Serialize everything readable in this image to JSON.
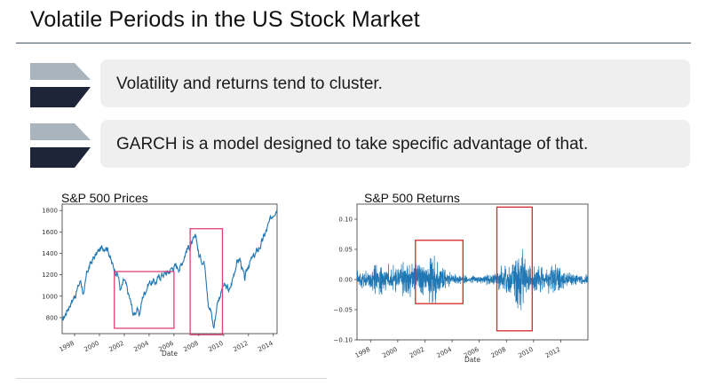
{
  "slide": {
    "title": "Volatile Periods in the US Stock Market",
    "bullets": [
      {
        "text": "Volatility and returns tend to cluster."
      },
      {
        "text": "GARCH is a model designed to take specific advantage of that."
      }
    ],
    "colors": {
      "chevron_light": "#a9b4bd",
      "chevron_dark": "#1f2538",
      "bullet_bg": "#efefef",
      "series": "#1f77b4",
      "highlight_prices": "#e0407a",
      "highlight_returns": "#d62728"
    }
  },
  "chart_data": [
    {
      "type": "line",
      "title": "S&P 500 Prices",
      "xlabel": "Date",
      "ylabel": "",
      "xlim": [
        1997.0,
        2014.3
      ],
      "ylim": [
        650,
        1860
      ],
      "xticks": [
        "1998",
        "2000",
        "2002",
        "2004",
        "2006",
        "2008",
        "2010",
        "2012",
        "2014"
      ],
      "yticks": [
        "800",
        "1000",
        "1200",
        "1400",
        "1600",
        "1800"
      ],
      "series": [
        {
          "x": [
            1997.0,
            1997.5,
            1998.0,
            1998.5,
            1998.75,
            1999.0,
            1999.5,
            2000.0,
            2000.5,
            2000.7,
            2001.0,
            2001.5,
            2001.7,
            2002.0,
            2002.5,
            2002.75,
            2003.0,
            2003.2,
            2003.5,
            2004.0,
            2004.5,
            2005.0,
            2005.5,
            2006.0,
            2006.5,
            2007.0,
            2007.5,
            2007.8,
            2008.0,
            2008.5,
            2008.8,
            2009.0,
            2009.2,
            2009.5,
            2010.0,
            2010.5,
            2011.0,
            2011.3,
            2011.7,
            2012.0,
            2012.5,
            2013.0,
            2013.5,
            2014.0,
            2014.3
          ],
          "y": [
            760,
            900,
            1000,
            1150,
            1000,
            1230,
            1350,
            1430,
            1470,
            1440,
            1300,
            1200,
            1050,
            1150,
            950,
            820,
            880,
            820,
            1000,
            1130,
            1130,
            1200,
            1220,
            1280,
            1270,
            1430,
            1500,
            1550,
            1380,
            1300,
            900,
            850,
            700,
            950,
            1100,
            1050,
            1300,
            1350,
            1150,
            1300,
            1380,
            1480,
            1630,
            1780,
            1830
          ]
        }
      ],
      "highlights": [
        {
          "x": [
            2001.2,
            2006.0
          ],
          "y": [
            700,
            1230
          ]
        },
        {
          "x": [
            2007.3,
            2009.9
          ],
          "y": [
            640,
            1630
          ]
        }
      ]
    },
    {
      "type": "line",
      "title": "S&P 500 Returns",
      "xlabel": "Date",
      "ylabel": "",
      "xlim": [
        1997.0,
        2014.0
      ],
      "ylim": [
        -0.1,
        0.125
      ],
      "xticks": [
        "1998",
        "2000",
        "2002",
        "2004",
        "2006",
        "2008",
        "2010",
        "2012"
      ],
      "yticks": [
        "−0.10",
        "−0.05",
        "0.00",
        "0.05",
        "0.10"
      ],
      "series": [
        {
          "x": [
            1997,
            1998,
            1998.6,
            1999,
            2000,
            2000.5,
            2001,
            2001.7,
            2002,
            2002.6,
            2003,
            2003.5,
            2004,
            2005,
            2006,
            2007,
            2007.7,
            2008,
            2008.5,
            2008.8,
            2009.0,
            2009.3,
            2009.6,
            2010,
            2010.4,
            2011,
            2011.6,
            2012,
            2013,
            2014
          ],
          "amplitude": [
            0.018,
            0.022,
            0.04,
            0.028,
            0.03,
            0.038,
            0.035,
            0.05,
            0.04,
            0.06,
            0.035,
            0.022,
            0.012,
            0.009,
            0.008,
            0.015,
            0.03,
            0.035,
            0.045,
            0.11,
            0.09,
            0.06,
            0.035,
            0.025,
            0.04,
            0.022,
            0.045,
            0.02,
            0.013,
            0.012
          ]
        }
      ],
      "highlights": [
        {
          "x": [
            2001.3,
            2004.8
          ],
          "y": [
            -0.04,
            0.065
          ]
        },
        {
          "x": [
            2007.3,
            2009.9
          ],
          "y": [
            -0.085,
            0.12
          ]
        }
      ]
    }
  ]
}
